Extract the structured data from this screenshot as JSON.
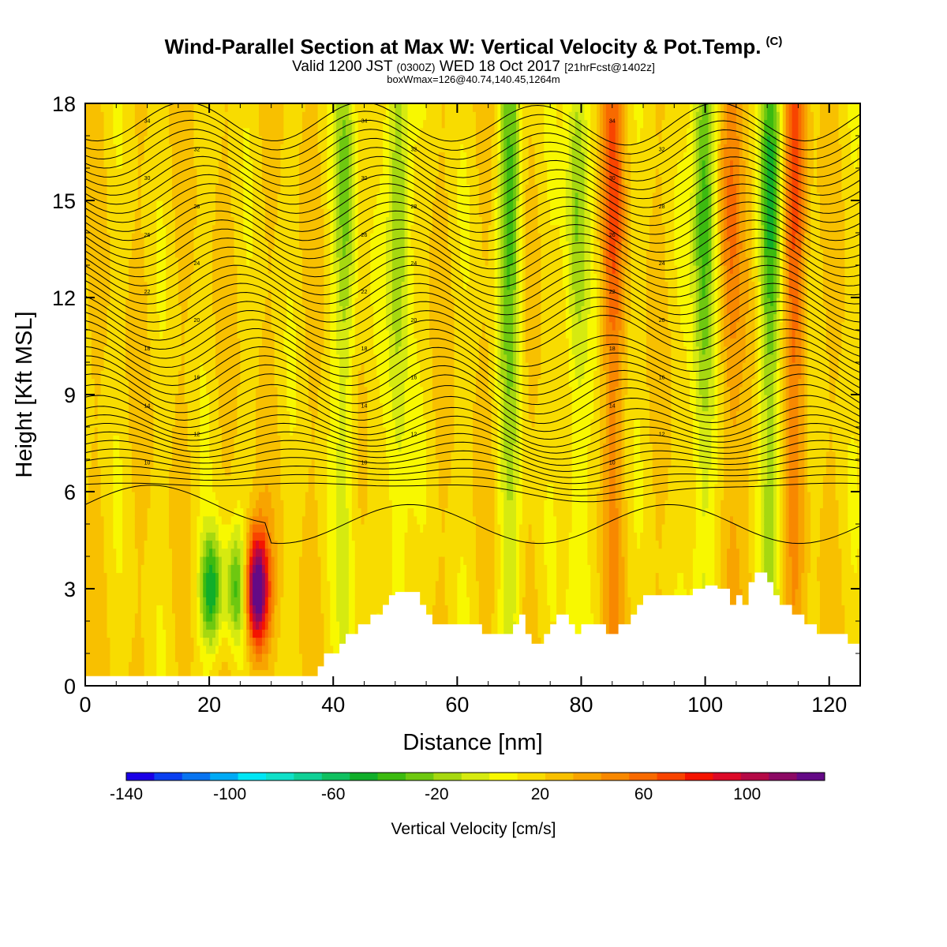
{
  "title": {
    "main": "Wind-Parallel Section at Max W: Vertical Velocity & Pot.Temp.",
    "copyright": "(C)",
    "valid_prefix": "Valid 1200 JST",
    "valid_zulu": "(0300Z)",
    "valid_date": "WED 18 Oct 2017",
    "forecast": "[21hrFcst@1402z]",
    "boxinfo": "boxWmax=126@40.74,140.45,1264m"
  },
  "colorbar": {
    "title": "Vertical Velocity [cm/s]",
    "labels": [
      "-140",
      "-100",
      "-60",
      "-20",
      "20",
      "60",
      "100"
    ],
    "colors": [
      "#1a00e6",
      "#0a3ff0",
      "#0874f0",
      "#00aaf5",
      "#00e6f5",
      "#10e0c8",
      "#10d096",
      "#10c060",
      "#10ae2a",
      "#3cba10",
      "#6ec810",
      "#a6d810",
      "#d6ea10",
      "#f8f800",
      "#f8dc00",
      "#f8c000",
      "#f8a400",
      "#f88800",
      "#f86a00",
      "#f84400",
      "#f41400",
      "#dc0a28",
      "#b40a46",
      "#8c0a64",
      "#640a86"
    ],
    "min": -140,
    "max": 120,
    "step": 10
  },
  "chart_data": {
    "type": "heatmap",
    "title": "Wind-Parallel Section at Max W: Vertical Velocity & Pot.Temp.",
    "xlabel": "Distance [nm]",
    "ylabel": "Height [Kft MSL]",
    "xlim": [
      0,
      125
    ],
    "ylim": [
      0,
      18
    ],
    "xticks": [
      "0",
      "20",
      "40",
      "60",
      "80",
      "100",
      "120"
    ],
    "yticks": [
      "0",
      "3",
      "6",
      "9",
      "12",
      "15",
      "18"
    ],
    "w_field_cm_s": [
      {
        "x": 20.3,
        "value": -65
      },
      {
        "x": 24.6,
        "value": -55
      },
      {
        "x": 27.6,
        "value": 120
      },
      {
        "x": 42.0,
        "value": -40
      },
      {
        "x": 50.5,
        "value": -45
      },
      {
        "x": 68.5,
        "value": -50
      },
      {
        "x": 79.3,
        "value": -40
      },
      {
        "x": 85.0,
        "value": 40
      },
      {
        "x": 99.8,
        "value": -60
      },
      {
        "x": 104.0,
        "value": 35
      },
      {
        "x": 110.6,
        "value": -55
      },
      {
        "x": 114.5,
        "value": 45
      }
    ],
    "terrain_kft": {
      "x": [
        0,
        10,
        20,
        30,
        36,
        37.5,
        38.5,
        40,
        41,
        42,
        44,
        46,
        48,
        49,
        50,
        51,
        54,
        55,
        56,
        58,
        60,
        62,
        64,
        66,
        68,
        69,
        70,
        71,
        72,
        73,
        74,
        75,
        76,
        78,
        79,
        80,
        82,
        84,
        86,
        88,
        89,
        90,
        92,
        94,
        96,
        98,
        100,
        102,
        104,
        105,
        106,
        107,
        108,
        109,
        110,
        111,
        112,
        114,
        116,
        118,
        120,
        122,
        123,
        125
      ],
      "y": [
        0.3,
        0.3,
        0.3,
        0.3,
        0.3,
        0.6,
        1.0,
        1.0,
        1.3,
        1.6,
        1.9,
        2.2,
        2.5,
        2.8,
        2.9,
        2.9,
        2.5,
        2.2,
        1.9,
        1.9,
        1.9,
        1.9,
        1.6,
        1.6,
        1.6,
        1.9,
        2.2,
        1.6,
        1.3,
        1.3,
        1.6,
        1.9,
        2.2,
        1.9,
        1.6,
        1.9,
        1.9,
        1.6,
        1.9,
        2.2,
        2.5,
        2.8,
        2.8,
        2.8,
        2.8,
        3.0,
        3.1,
        3.0,
        2.5,
        2.8,
        2.5,
        3.2,
        3.5,
        3.5,
        3.2,
        2.8,
        2.5,
        2.2,
        1.9,
        1.6,
        1.6,
        1.6,
        1.3,
        1.3
      ]
    },
    "theta_contour_labels": [
      "34",
      "34",
      "34",
      "32",
      "32",
      "32",
      "30",
      "30",
      "30",
      "28",
      "28",
      "28",
      "26",
      "26",
      "26",
      "24",
      "24",
      "24",
      "22",
      "22",
      "22",
      "20",
      "20",
      "20",
      "18",
      "18",
      "18",
      "16",
      "16",
      "16",
      "14",
      "14",
      "14",
      "12",
      "12",
      "12",
      "10",
      "10",
      "10"
    ]
  }
}
